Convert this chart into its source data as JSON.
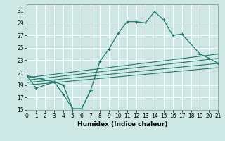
{
  "xlabel": "Humidex (Indice chaleur)",
  "bg_color": "#cde8e4",
  "grid_color": "#b0d8d2",
  "line_color": "#1a7a6e",
  "xlim": [
    0,
    21
  ],
  "ylim": [
    15,
    32
  ],
  "xticks": [
    0,
    1,
    2,
    3,
    4,
    5,
    6,
    7,
    8,
    9,
    10,
    11,
    12,
    13,
    14,
    15,
    16,
    17,
    18,
    19,
    20,
    21
  ],
  "yticks": [
    15,
    17,
    19,
    21,
    23,
    25,
    27,
    29,
    31
  ],
  "series": [
    {
      "x": [
        0,
        1,
        3,
        4,
        5,
        6,
        7,
        8,
        9,
        10,
        11,
        12,
        13,
        14,
        15
      ],
      "y": [
        20.5,
        18.5,
        19.5,
        19.0,
        15.2,
        15.2,
        18.2,
        22.8,
        24.8,
        27.3,
        29.2,
        29.2,
        29.0,
        30.8,
        29.5
      ],
      "marker": true
    },
    {
      "x": [
        15,
        16,
        17,
        19,
        20,
        21
      ],
      "y": [
        29.5,
        27.0,
        27.2,
        24.0,
        23.3,
        22.5
      ],
      "marker": true
    },
    {
      "x": [
        0,
        3,
        4,
        5,
        6,
        7
      ],
      "y": [
        20.5,
        19.5,
        17.5,
        15.2,
        15.2,
        18.2
      ],
      "marker": true
    },
    {
      "x": [
        0,
        21
      ],
      "y": [
        20.2,
        24.0
      ],
      "marker": false
    },
    {
      "x": [
        0,
        21
      ],
      "y": [
        19.8,
        23.3
      ],
      "marker": false
    },
    {
      "x": [
        0,
        21
      ],
      "y": [
        19.4,
        22.5
      ],
      "marker": false
    },
    {
      "x": [
        0,
        21
      ],
      "y": [
        19.0,
        21.8
      ],
      "marker": false
    }
  ]
}
